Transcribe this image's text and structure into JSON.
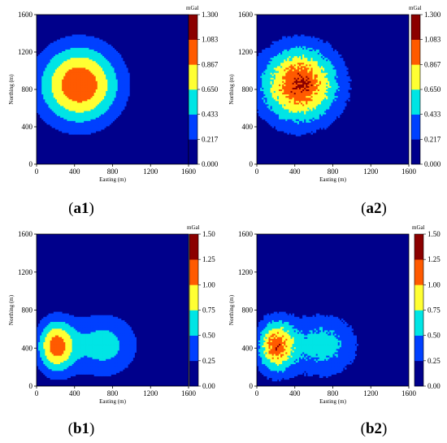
{
  "chart_data": [
    {
      "type": "heatmap",
      "panel": "a1",
      "caption_letter": "a1",
      "xlabel": "Easting (m)",
      "ylabel": "Northing (m)",
      "xlim": [
        0,
        1600
      ],
      "ylim": [
        0,
        1600
      ],
      "xticks": [
        "0",
        "400",
        "800",
        "1200",
        "1600"
      ],
      "yticks": [
        "0",
        "400",
        "800",
        "1200",
        "1600"
      ],
      "colorbar_unit": "mGal",
      "colorbar_ticks": [
        "0.000",
        "0.217",
        "0.433",
        "0.650",
        "0.867",
        "1.083",
        "1.300"
      ],
      "colorbar_range": [
        0,
        1.3
      ],
      "noisy": false,
      "anomalies": [
        {
          "center": [
            450,
            850
          ],
          "sigma": [
            300,
            300
          ],
          "amplitude": 1.05
        }
      ]
    },
    {
      "type": "heatmap",
      "panel": "a2",
      "caption_letter": "a2",
      "xlabel": "Easting (m)",
      "ylabel": "Northing (m)",
      "xlim": [
        0,
        1600
      ],
      "ylim": [
        0,
        1600
      ],
      "xticks": [
        "0",
        "400",
        "800",
        "1200",
        "1600"
      ],
      "yticks": [
        "0",
        "400",
        "800",
        "1200",
        "1600"
      ],
      "colorbar_unit": "mGal",
      "colorbar_ticks": [
        "0.000",
        "0.217",
        "0.433",
        "0.650",
        "0.867",
        "1.083",
        "1.300"
      ],
      "colorbar_range": [
        0,
        1.3
      ],
      "noisy": true,
      "anomalies": [
        {
          "center": [
            450,
            850
          ],
          "sigma": [
            295,
            295
          ],
          "amplitude": 1.08
        }
      ]
    },
    {
      "type": "heatmap",
      "panel": "b1",
      "caption_letter": "b1",
      "xlabel": "Easting (m)",
      "ylabel": "Northing (m)",
      "xlim": [
        0,
        1600
      ],
      "ylim": [
        0,
        1600
      ],
      "xticks": [
        "0",
        "400",
        "800",
        "1200",
        "1600"
      ],
      "yticks": [
        "0",
        "400",
        "800",
        "1200",
        "1600"
      ],
      "colorbar_unit": "mGal",
      "colorbar_ticks": [
        "0.00",
        "0.25",
        "0.50",
        "0.75",
        "1.00",
        "1.25",
        "1.50"
      ],
      "colorbar_range": [
        0,
        1.5
      ],
      "noisy": false,
      "anomalies": [
        {
          "center": [
            200,
            420
          ],
          "sigma": [
            140,
            200
          ],
          "amplitude": 1.05
        },
        {
          "center": [
            700,
            430
          ],
          "sigma": [
            260,
            240
          ],
          "amplitude": 0.62
        }
      ]
    },
    {
      "type": "heatmap",
      "panel": "b2",
      "caption_letter": "b2",
      "xlabel": "Easting (m)",
      "ylabel": "Northing (m)",
      "xlim": [
        0,
        1600
      ],
      "ylim": [
        0,
        1600
      ],
      "xticks": [
        "0",
        "400",
        "800",
        "1200",
        "1600"
      ],
      "yticks": [
        "0",
        "400",
        "800",
        "1200",
        "1600"
      ],
      "colorbar_unit": "mGal",
      "colorbar_ticks": [
        "0.00",
        "0.25",
        "0.50",
        "0.75",
        "1.00",
        "1.25",
        "1.50"
      ],
      "colorbar_range": [
        0,
        1.5
      ],
      "noisy": true,
      "anomalies": [
        {
          "center": [
            200,
            420
          ],
          "sigma": [
            140,
            200
          ],
          "amplitude": 1.08
        },
        {
          "center": [
            700,
            430
          ],
          "sigma": [
            260,
            240
          ],
          "amplitude": 0.62
        }
      ]
    }
  ],
  "colors": {
    "levels": [
      "#00008b",
      "#0040ff",
      "#00e5e5",
      "#ffff33",
      "#ff5a00",
      "#8b0000"
    ],
    "axis": "#000000"
  }
}
